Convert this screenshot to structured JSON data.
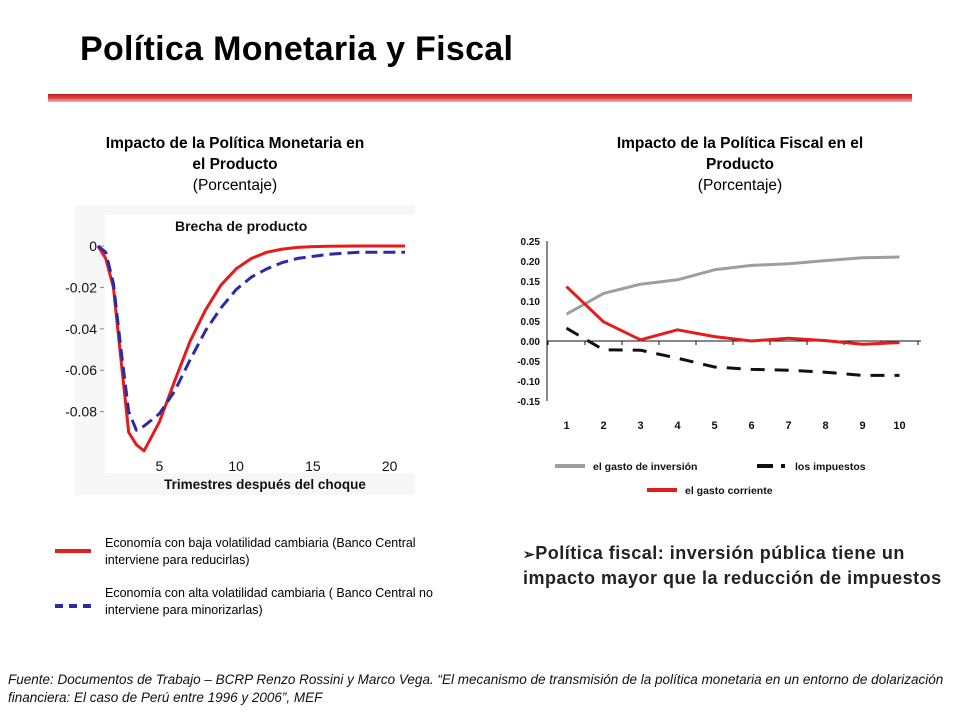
{
  "title": "Política Monetaria y Fiscal",
  "left_panel": {
    "title_line1": "Impacto de la Política Monetaria en",
    "title_line2": "el Producto",
    "unit": "(Porcentaje)"
  },
  "right_panel": {
    "title_line1": "Impacto de la Política Fiscal en el",
    "title_line2": "Producto",
    "unit": "(Porcentaje)"
  },
  "chart_data": [
    {
      "type": "line",
      "title": "Brecha de producto",
      "xlabel": "Trimestres después del choque",
      "ylabel": "",
      "xlim": [
        1,
        21
      ],
      "ylim": [
        -0.1,
        0
      ],
      "xticks": [
        5,
        10,
        15,
        20
      ],
      "yticks": [
        0,
        -0.02,
        -0.04,
        -0.06,
        -0.08
      ],
      "ytick_labels": [
        "0",
        "-0.02",
        "-0.04",
        "-0.06",
        "-0.08"
      ],
      "series": [
        {
          "name": "Economía con baja volatilidad cambiaria (Banco Central interviene para reducirlas)",
          "color": "#e41c1c",
          "style": "solid",
          "x": [
            1,
            1.5,
            2,
            2.5,
            3,
            3.5,
            4,
            5,
            6,
            7,
            8,
            9,
            10,
            11,
            12,
            13,
            14,
            15,
            16,
            18,
            20,
            21
          ],
          "y": [
            0,
            -0.006,
            -0.02,
            -0.055,
            -0.09,
            -0.096,
            -0.099,
            -0.085,
            -0.065,
            -0.046,
            -0.031,
            -0.019,
            -0.011,
            -0.006,
            -0.003,
            -0.0015,
            -0.0007,
            -0.0003,
            -0.0001,
            0,
            0,
            0
          ]
        },
        {
          "name": "Economía con alta volatilidad cambiaria ( Banco Central no interviene para minorizarlas)",
          "color": "#2b2ba8",
          "style": "dashed",
          "x": [
            1,
            1.5,
            2,
            2.5,
            3,
            3.5,
            4,
            5,
            6,
            7,
            8,
            9,
            10,
            11,
            12,
            13,
            14,
            15,
            16,
            18,
            20,
            21
          ],
          "y": [
            0,
            -0.003,
            -0.018,
            -0.05,
            -0.08,
            -0.089,
            -0.087,
            -0.081,
            -0.07,
            -0.055,
            -0.041,
            -0.03,
            -0.021,
            -0.015,
            -0.011,
            -0.008,
            -0.006,
            -0.005,
            -0.004,
            -0.003,
            -0.003,
            -0.003
          ]
        }
      ]
    },
    {
      "type": "line",
      "title": "",
      "xlabel": "",
      "ylabel": "",
      "categories": [
        "1",
        "2",
        "3",
        "4",
        "5",
        "6",
        "7",
        "8",
        "9",
        "10"
      ],
      "ylim": [
        -0.15,
        0.25
      ],
      "yticks": [
        "0.25",
        "0.20",
        "0.15",
        "0.10",
        "0.05",
        "0.00",
        "-0.05",
        "-0.10",
        "-0.15"
      ],
      "legend_position": "bottom",
      "series": [
        {
          "name": "el gasto de inversión",
          "color": "#9e9e9e",
          "style": "solid",
          "values": [
            0.067,
            0.119,
            0.142,
            0.153,
            0.178,
            0.189,
            0.193,
            0.201,
            0.208,
            0.21
          ]
        },
        {
          "name": "los impuestos",
          "color": "#111111",
          "style": "dashed",
          "values": [
            0.032,
            -0.022,
            -0.023,
            -0.043,
            -0.065,
            -0.071,
            -0.073,
            -0.078,
            -0.086,
            -0.086
          ]
        },
        {
          "name": "el gasto corriente",
          "color": "#e41c1c",
          "style": "solid",
          "values": [
            0.136,
            0.048,
            0.003,
            0.028,
            0.011,
            0.0,
            0.007,
            0.001,
            -0.008,
            -0.004
          ]
        }
      ]
    }
  ],
  "legend_left": [
    {
      "label": "Economía con baja volatilidad cambiaria  (Banco Central interviene para reducirlas)",
      "color": "#e41c1c"
    },
    {
      "label": "Economía con alta volatilidad cambiaria ( Banco Central no interviene para minorizarlas)",
      "color": "#2b2ba8"
    }
  ],
  "bullet": {
    "marker": "➢",
    "text": "Política fiscal: inversión pública tiene un impacto mayor que la reducción de impuestos"
  },
  "source": "Fuente: Documentos de Trabajo – BCRP  Renzo Rossini y Marco Vega. “El mecanismo de transmisión de la política monetaria en un entorno de dolarización financiera: El caso de Perú entre 1996 y 2006”,  MEF"
}
